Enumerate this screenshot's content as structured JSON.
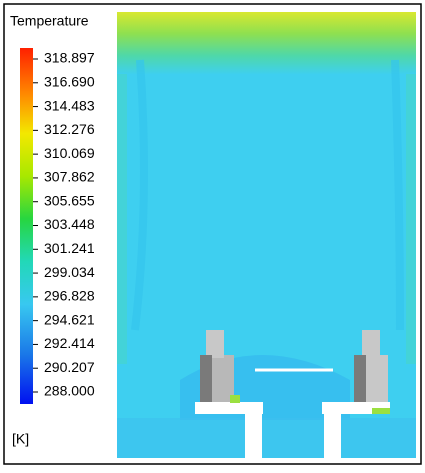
{
  "legend": {
    "title": "Temperature",
    "ticks": [
      "318.897",
      "316.690",
      "314.483",
      "312.276",
      "310.069",
      "307.862",
      "305.655",
      "303.448",
      "301.241",
      "299.034",
      "296.828",
      "294.621",
      "292.414",
      "290.207",
      "288.000"
    ],
    "unit": "[K]"
  }
}
